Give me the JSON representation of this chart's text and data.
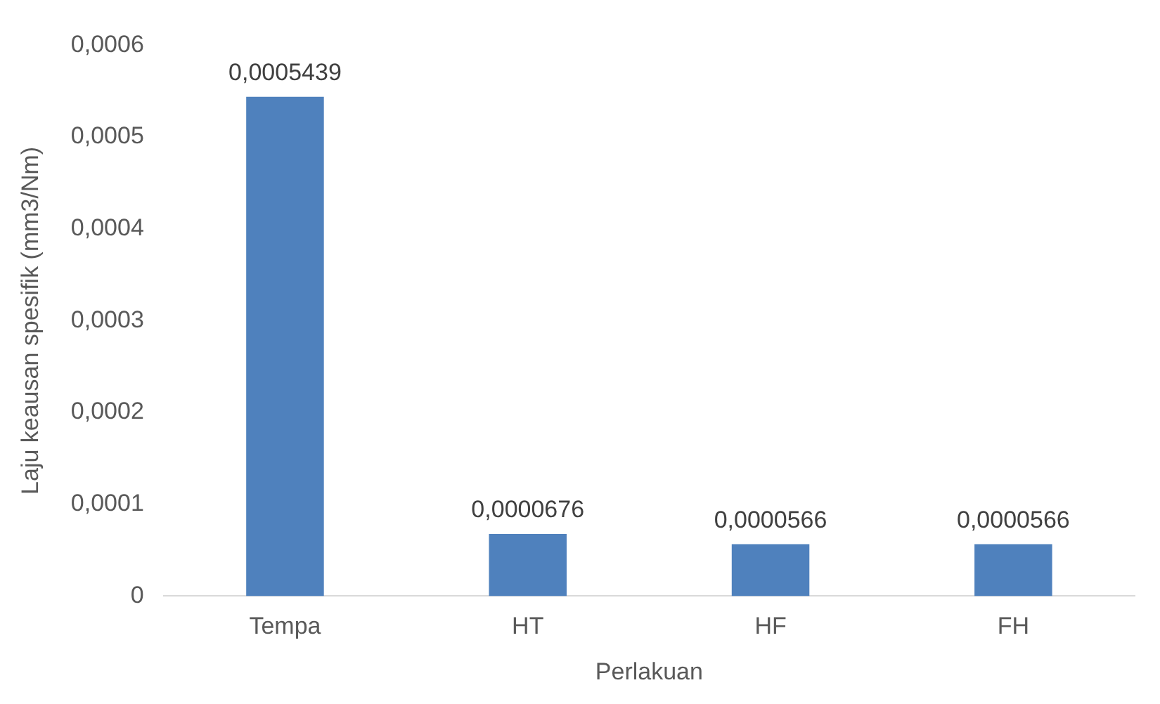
{
  "chart_data": {
    "type": "bar",
    "xlabel": "Perlakuan",
    "ylabel": "Laju keausan spesifik (mm3/Nm)",
    "categories": [
      "Tempa",
      "HT",
      "HF",
      "FH"
    ],
    "values": [
      0.0005439,
      6.76e-05,
      5.66e-05,
      5.66e-05
    ],
    "value_labels": [
      "0,0005439",
      "0,0000676",
      "0,0000566",
      "0,0000566"
    ],
    "color": "#4f81bd",
    "ylim": [
      0,
      0.0006
    ],
    "yticks": [
      0,
      {
        "value": 0.0001,
        "label": "0,0001"
      },
      {
        "value": 0.0002,
        "label": "0,0002"
      },
      {
        "value": 0.0003,
        "label": "0,0003"
      },
      {
        "value": 0.0004,
        "label": "0,0004"
      },
      {
        "value": 0.0005,
        "label": "0,0005"
      },
      {
        "value": 0.0006,
        "label": "0,0006"
      }
    ],
    "grid": false,
    "legend": false
  }
}
